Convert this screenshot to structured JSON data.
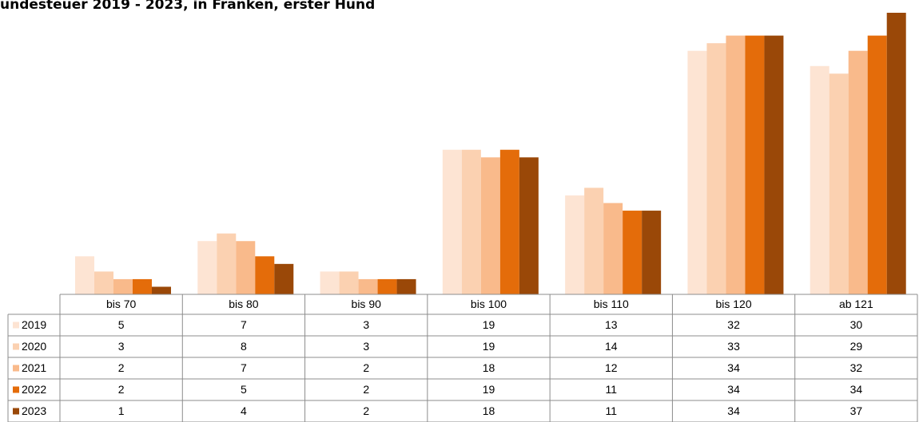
{
  "chart_data": {
    "type": "bar",
    "title": "undesteuer 2019 - 2023, in Franken, erster Hund",
    "categories": [
      "bis 70",
      "bis 80",
      "bis 90",
      "bis 100",
      "bis 110",
      "bis 120",
      "ab 121"
    ],
    "series": [
      {
        "name": "2019",
        "color": "#fde4d3",
        "values": [
          5,
          7,
          3,
          19,
          13,
          32,
          30
        ]
      },
      {
        "name": "2020",
        "color": "#fbd1b1",
        "values": [
          3,
          8,
          3,
          19,
          14,
          33,
          29
        ]
      },
      {
        "name": "2021",
        "color": "#f9ba8b",
        "values": [
          2,
          7,
          2,
          18,
          12,
          34,
          32
        ]
      },
      {
        "name": "2022",
        "color": "#e46c0a",
        "values": [
          2,
          5,
          2,
          19,
          11,
          34,
          34
        ]
      },
      {
        "name": "2023",
        "color": "#9a4808",
        "values": [
          1,
          4,
          2,
          18,
          11,
          34,
          37
        ]
      }
    ]
  }
}
